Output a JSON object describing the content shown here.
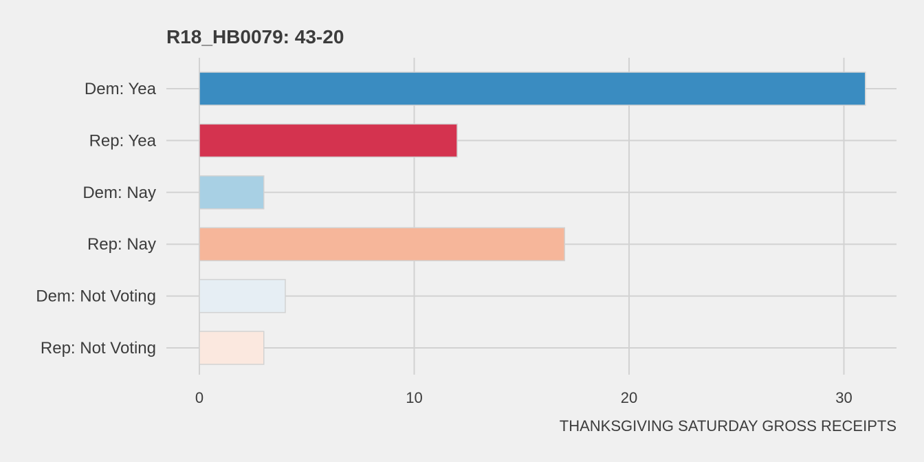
{
  "colors": {
    "background": "#f0f0f0",
    "grid": "#d2d2d2",
    "text": "#3c3c3c",
    "bar_border": "#d2d2d2"
  },
  "chart_data": {
    "type": "bar",
    "orientation": "horizontal",
    "title": "R18_HB0079: 43-20",
    "xlabel": "THANKSGIVING SATURDAY GROSS RECEIPTS",
    "ylabel": "",
    "xlim": [
      0,
      33
    ],
    "x_ticks": [
      0,
      10,
      20,
      30
    ],
    "grid": true,
    "legend": "none",
    "categories": [
      "Dem: Yea",
      "Rep: Yea",
      "Dem: Nay",
      "Rep: Nay",
      "Dem: Not Voting",
      "Rep: Not Voting"
    ],
    "values": [
      31,
      12,
      3,
      17,
      4,
      3
    ],
    "bar_colors": [
      "#3a8cc1",
      "#d4334f",
      "#a8d0e4",
      "#f6b69a",
      "#e6eef4",
      "#fbe8df"
    ]
  }
}
